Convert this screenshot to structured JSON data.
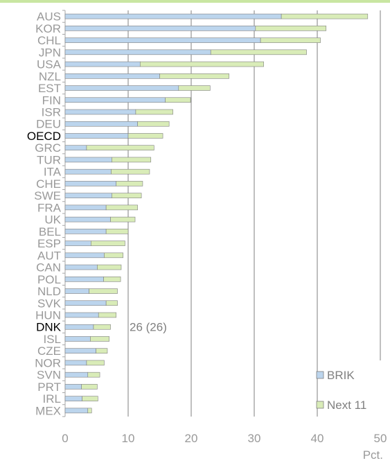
{
  "chart_data": {
    "type": "bar",
    "orientation": "horizontal",
    "stacked": true,
    "categories": [
      "AUS",
      "KOR",
      "CHL",
      "JPN",
      "USA",
      "NZL",
      "EST",
      "FIN",
      "ISR",
      "DEU",
      "OECD",
      "GRC",
      "TUR",
      "ITA",
      "CHE",
      "SWE",
      "FRA",
      "UK",
      "BEL",
      "ESP",
      "AUT",
      "CAN",
      "POL",
      "NLD",
      "SVK",
      "HUN",
      "DNK",
      "ISL",
      "CZE",
      "NOR",
      "SVN",
      "PRT",
      "IRL",
      "MEX"
    ],
    "highlighted_categories": [
      "OECD",
      "DNK"
    ],
    "series": [
      {
        "name": "BRIK",
        "color": "#bcd5ed",
        "values": [
          34.3,
          30.2,
          31.0,
          23.1,
          11.9,
          15.0,
          18.0,
          15.9,
          11.2,
          11.5,
          10.0,
          3.4,
          7.4,
          7.3,
          8.1,
          7.4,
          6.5,
          7.2,
          6.5,
          4.1,
          6.2,
          5.1,
          6.1,
          3.8,
          6.5,
          5.3,
          4.5,
          4.0,
          4.9,
          3.4,
          3.6,
          2.6,
          2.7,
          3.6
        ]
      },
      {
        "name": "Next 11",
        "color": "#d9ecb8",
        "values": [
          13.7,
          11.2,
          9.5,
          15.2,
          19.6,
          11.0,
          5.0,
          4.0,
          5.9,
          5.0,
          5.5,
          10.7,
          6.2,
          6.1,
          4.2,
          4.7,
          5.0,
          3.9,
          3.5,
          5.4,
          3.0,
          3.8,
          2.7,
          4.5,
          1.8,
          2.8,
          2.7,
          3.0,
          1.8,
          2.8,
          1.9,
          2.5,
          2.5,
          0.6
        ]
      }
    ],
    "x_ticks": [
      "0",
      "10",
      "20",
      "30",
      "40",
      "50"
    ],
    "xlim": [
      0,
      50
    ],
    "x_unit": "Pct.",
    "grid": true,
    "legend_position": "bottom-right",
    "annotations": [
      {
        "category": "DNK",
        "text": "26 (26)"
      }
    ]
  }
}
